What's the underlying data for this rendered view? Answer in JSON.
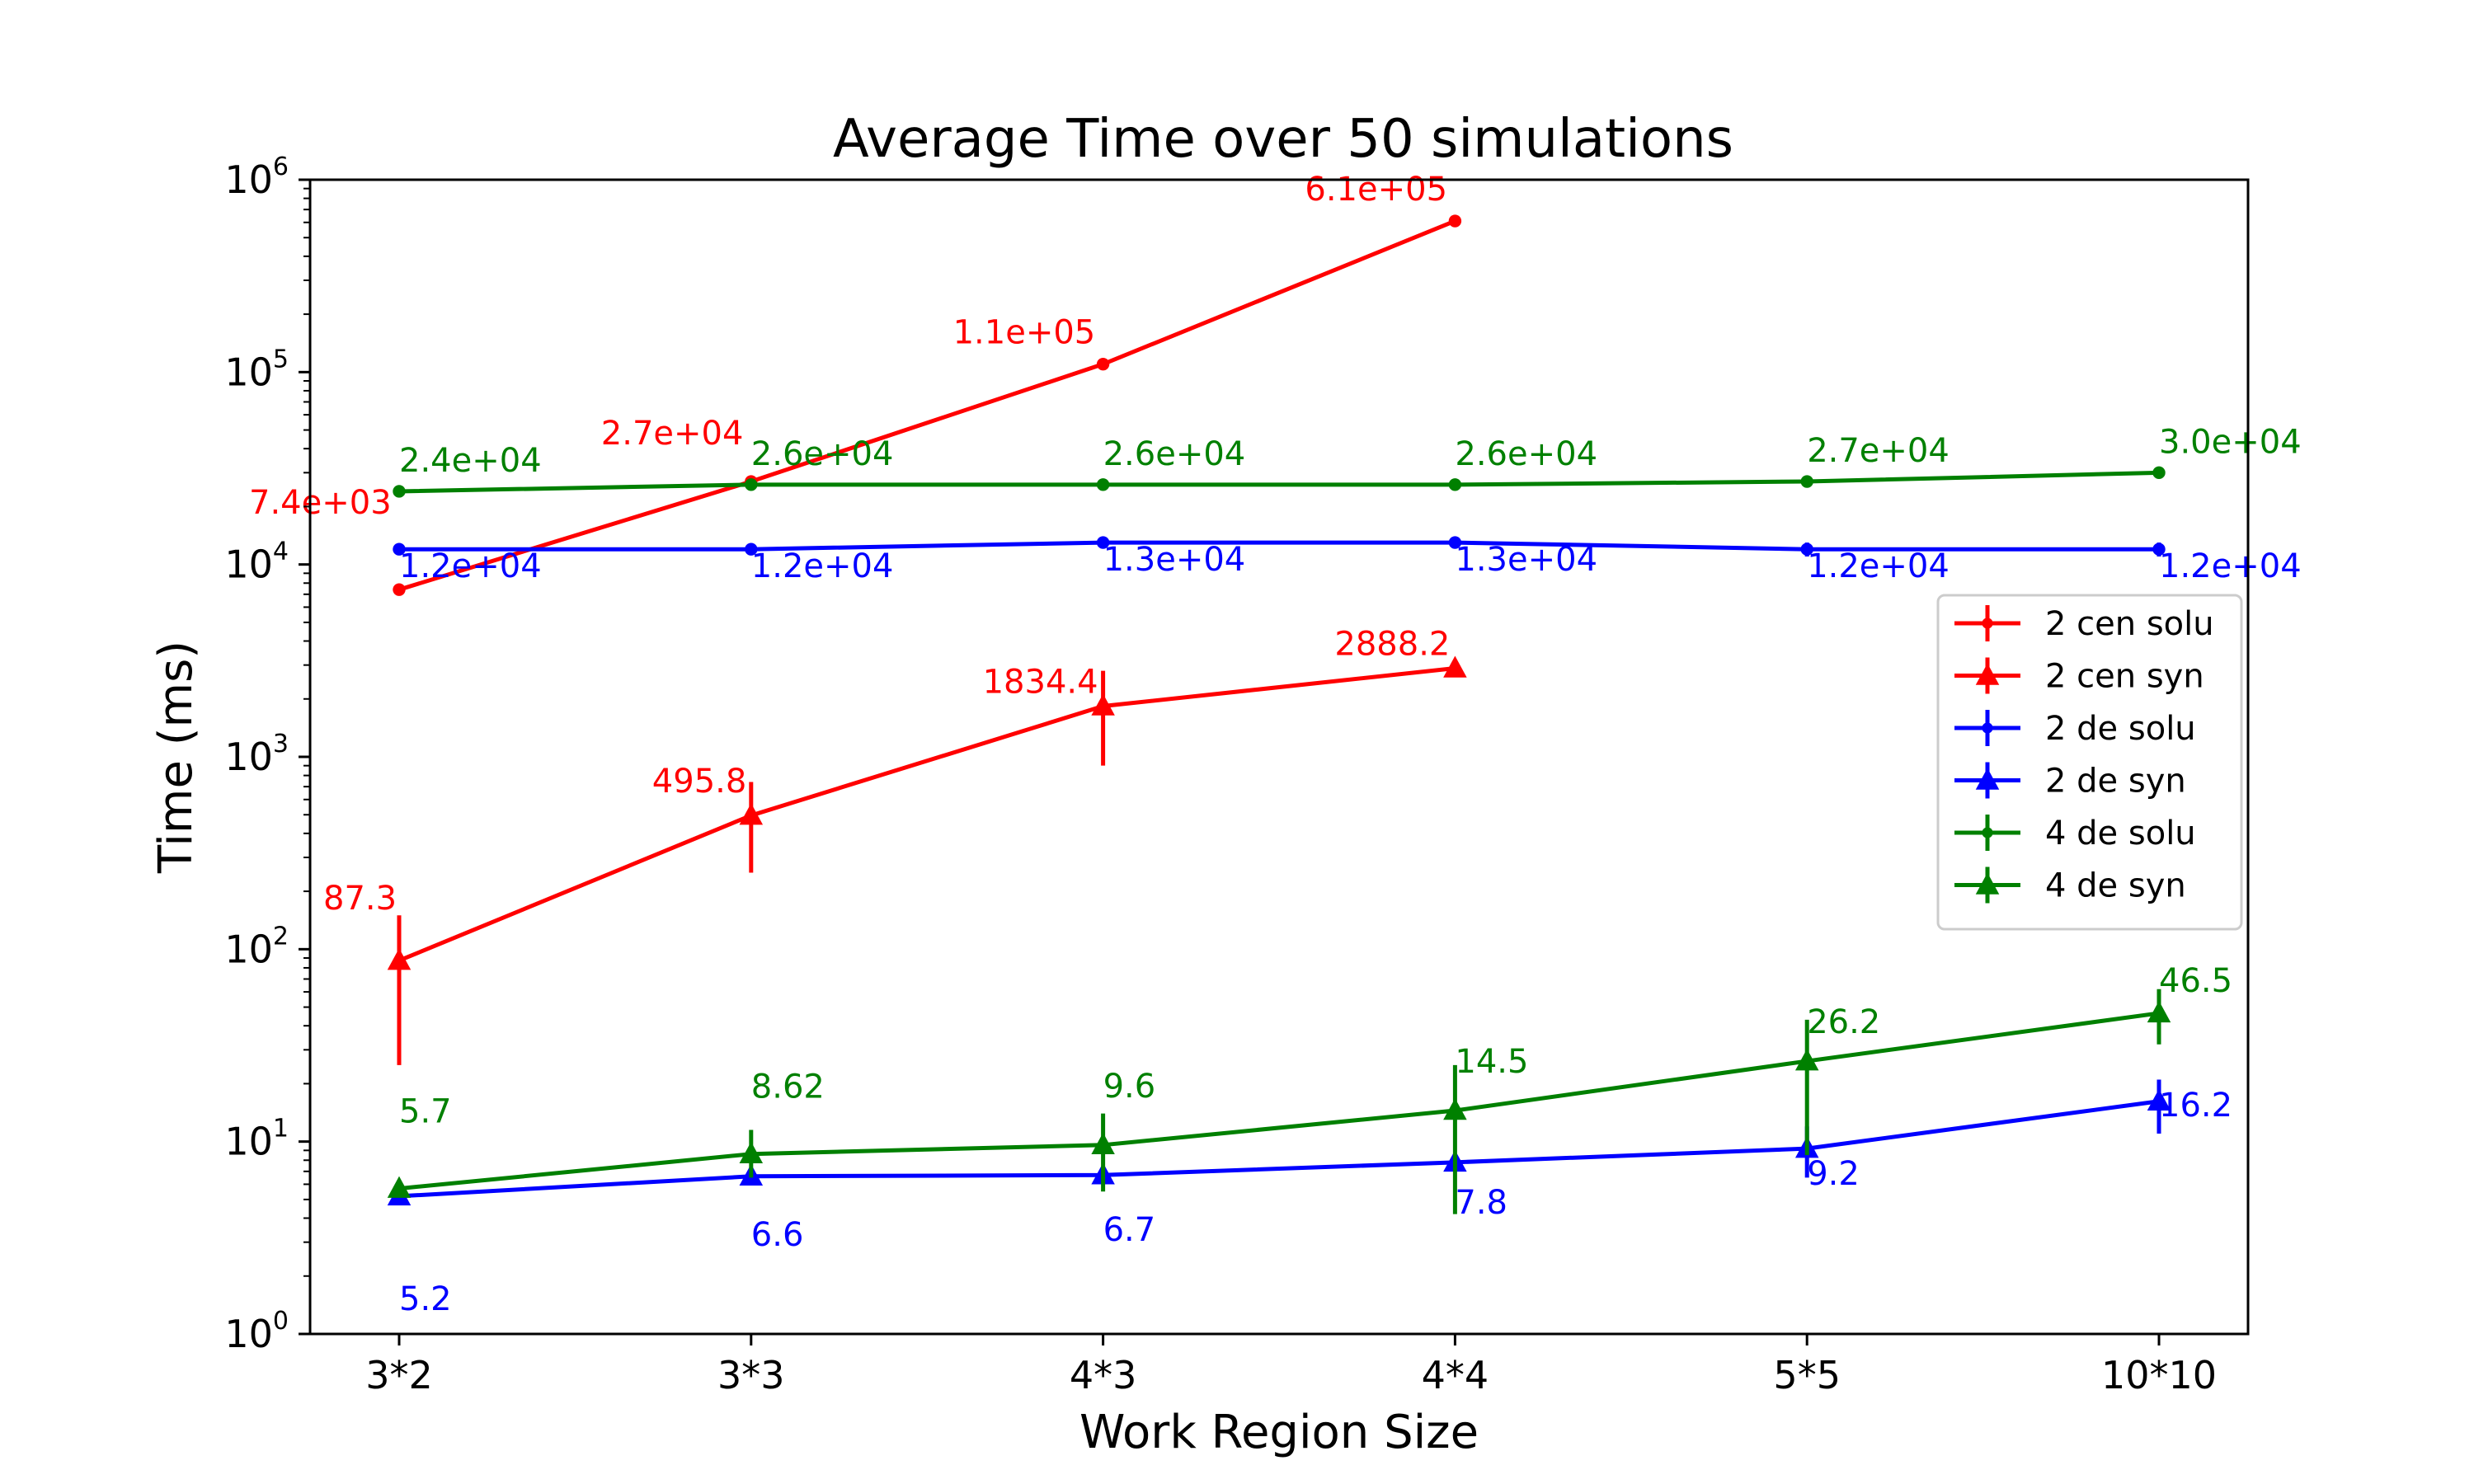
{
  "chart_data": {
    "type": "line",
    "title": "Average Time over 50 simulations",
    "xlabel": "Work Region Size",
    "ylabel": "Time (ms)",
    "yscale": "log",
    "ylim": [
      1,
      1000000
    ],
    "grid": false,
    "legend_position": "center-right",
    "categories": [
      "3*2",
      "3*3",
      "4*3",
      "4*4",
      "5*5",
      "10*10"
    ],
    "y_ticks": [
      {
        "base": "10",
        "exp": "0"
      },
      {
        "base": "10",
        "exp": "1"
      },
      {
        "base": "10",
        "exp": "2"
      },
      {
        "base": "10",
        "exp": "3"
      },
      {
        "base": "10",
        "exp": "4"
      },
      {
        "base": "10",
        "exp": "5"
      },
      {
        "base": "10",
        "exp": "6"
      }
    ],
    "series": [
      {
        "name": "2 cen solu",
        "color": "#ff0000",
        "marker": "circle",
        "values": [
          7400,
          27000,
          110000,
          610000,
          null,
          null
        ],
        "err_low": [
          7400,
          27000,
          110000,
          610000,
          null,
          null
        ],
        "err_high": [
          7400,
          27000,
          110000,
          610000,
          null,
          null
        ],
        "labels": [
          "7.4e+03",
          "2.7e+04",
          "1.1e+05",
          "6.1e+05",
          null,
          null
        ]
      },
      {
        "name": "2 cen syn",
        "color": "#ff0000",
        "marker": "triangle",
        "values": [
          87.3,
          495.8,
          1834.4,
          2888.2,
          null,
          null
        ],
        "err_low": [
          25,
          250,
          900,
          2700,
          null,
          null
        ],
        "err_high": [
          150,
          740,
          2800,
          3050,
          null,
          null
        ],
        "labels": [
          "87.3",
          "495.8",
          "1834.4",
          "2888.2",
          null,
          null
        ]
      },
      {
        "name": "2 de solu",
        "color": "#0000ff",
        "marker": "circle",
        "values": [
          12000,
          12000,
          13000,
          13000,
          12000,
          12000
        ],
        "err_low": [
          11800,
          11800,
          12800,
          12800,
          11000,
          11000
        ],
        "err_high": [
          12200,
          12200,
          13200,
          13200,
          13000,
          13000
        ],
        "labels": [
          "1.2e+04",
          "1.2e+04",
          "1.3e+04",
          "1.3e+04",
          "1.2e+04",
          "1.2e+04"
        ]
      },
      {
        "name": "2 de syn",
        "color": "#0000ff",
        "marker": "triangle",
        "values": [
          5.2,
          6.6,
          6.7,
          7.8,
          9.2,
          16.2
        ],
        "err_low": [
          5.0,
          6.4,
          6.5,
          7.4,
          6.5,
          11
        ],
        "err_high": [
          5.4,
          6.8,
          6.9,
          8.2,
          12,
          21
        ],
        "labels": [
          "5.2",
          "6.6",
          "6.7",
          "7.8",
          "9.2",
          "16.2"
        ]
      },
      {
        "name": "4 de solu",
        "color": "#008000",
        "marker": "circle",
        "values": [
          24000,
          26000,
          26000,
          26000,
          27000,
          30000
        ],
        "err_low": [
          23800,
          25800,
          25800,
          25800,
          26800,
          29800
        ],
        "err_high": [
          24200,
          26200,
          26200,
          26200,
          27200,
          30200
        ],
        "labels": [
          "2.4e+04",
          "2.6e+04",
          "2.6e+04",
          "2.6e+04",
          "2.7e+04",
          "3.0e+04"
        ]
      },
      {
        "name": "4 de syn",
        "color": "#008000",
        "marker": "triangle",
        "values": [
          5.7,
          8.62,
          9.6,
          14.5,
          26.2,
          46.5
        ],
        "err_low": [
          5.5,
          6.5,
          5.5,
          4.2,
          8.5,
          32
        ],
        "err_high": [
          5.9,
          11.5,
          14,
          25,
          43,
          62
        ],
        "labels": [
          "5.7",
          "8.62",
          "9.6",
          "14.5",
          "26.2",
          "46.5"
        ]
      }
    ]
  }
}
